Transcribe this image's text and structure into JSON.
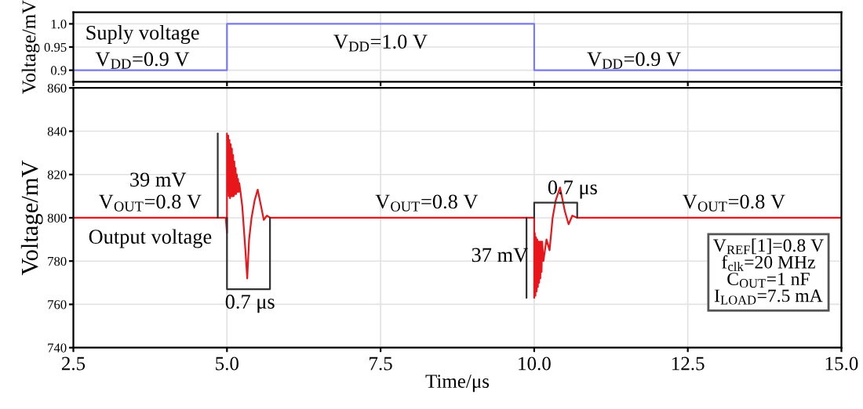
{
  "chart_data": [
    {
      "type": "line",
      "ylabel": "Voltage/mV",
      "xlim": [
        2.5,
        15.0
      ],
      "xticks": [
        {
          "value": 2.5,
          "label": null
        },
        {
          "value": 5,
          "label": null
        },
        {
          "value": 7.5,
          "label": null
        },
        {
          "value": 10,
          "label": null
        },
        {
          "value": 12.5,
          "label": null
        },
        {
          "value": 15,
          "label": null
        }
      ],
      "ylim": [
        0.875,
        1.025
      ],
      "yticks": [
        0.9,
        0.95,
        {
          "value": 1,
          "label": "1.0"
        }
      ],
      "grid": true,
      "tick_labels": "y",
      "series": [
        {
          "color": "#7b7bf0",
          "x": [
            2.5,
            5.0,
            5.0,
            10.0,
            10.0,
            15.0
          ],
          "values": [
            0.9,
            0.9,
            1.0,
            1.0,
            0.9,
            0.9
          ]
        }
      ],
      "annotations": [
        "Suply voltage",
        "V$_{DD}$=0.9 V",
        "V$_{DD}$=1.0 V",
        "V$_{DD}$=0.9 V"
      ]
    },
    {
      "type": "line",
      "xlabel": "Time/μs",
      "ylabel": "Voltage/mV",
      "xlim": [
        2.5,
        15.0
      ],
      "xticks": [
        2.5,
        {
          "value": 5,
          "label": "5.0"
        },
        7.5,
        {
          "value": 10,
          "label": "10.0"
        },
        12.5,
        {
          "value": 15,
          "label": "15.0"
        }
      ],
      "ylim": [
        740,
        860
      ],
      "yticks": [
        740,
        760,
        780,
        800,
        820,
        840,
        860
      ],
      "grid": true,
      "series": [
        {
          "color": "#e8161b",
          "x": [
            2.5,
            4.98,
            5.0,
            5.0,
            5.01,
            5.02,
            5.03,
            5.04,
            5.05,
            5.06,
            5.07,
            5.08,
            5.09,
            5.1,
            5.11,
            5.12,
            5.13,
            5.14,
            5.15,
            5.16,
            5.17,
            5.18,
            5.19,
            5.2,
            5.22,
            5.25,
            5.3,
            5.33,
            5.36,
            5.4,
            5.45,
            5.5,
            5.55,
            5.6,
            5.65,
            5.7,
            9.98,
            10.0,
            10.0,
            10.01,
            10.02,
            10.03,
            10.04,
            10.05,
            10.06,
            10.07,
            10.08,
            10.09,
            10.1,
            10.11,
            10.12,
            10.13,
            10.15,
            10.2,
            10.25,
            10.3,
            10.35,
            10.42,
            10.5,
            10.56,
            10.62,
            10.7,
            15.0
          ],
          "values": [
            800,
            800,
            793,
            839,
            812,
            838,
            810,
            836,
            809,
            834,
            810,
            832,
            810,
            829,
            810,
            826,
            811,
            823,
            811,
            820,
            812,
            818,
            812,
            816,
            812,
            805,
            785,
            772,
            790,
            800,
            808,
            813,
            806,
            799,
            801,
            800,
            800,
            800,
            763,
            793,
            764,
            791,
            766,
            790,
            768,
            789,
            770,
            789,
            772,
            789,
            775,
            789,
            780,
            790,
            785,
            800,
            808,
            814,
            803,
            797,
            801,
            800,
            800
          ]
        },
        {
          "color": "#333333",
          "x": [
            4.85,
            4.85
          ],
          "values": [
            839,
            800
          ]
        },
        {
          "color": "#333333",
          "x": [
            5.0,
            5.0,
            5.7,
            5.7
          ],
          "values": [
            800,
            767,
            767,
            800
          ]
        },
        {
          "color": "#333333",
          "x": [
            9.875,
            9.875
          ],
          "values": [
            800,
            763
          ]
        },
        {
          "color": "#333333",
          "x": [
            10.0,
            10.0,
            10.7,
            10.7
          ],
          "values": [
            800,
            807,
            807,
            800
          ]
        }
      ],
      "annotations": [
        "39 mV",
        "V$_{OUT}$=0.8 V",
        "Output voltage",
        "0.7 μs",
        "V$_{OUT}$=0.8 V",
        "0.7 μs",
        "37 mV",
        "V$_{OUT}$=0.8 V",
        "V$_{REF}$[1]=0.8 V\nf$_{clk}$=20 MHz\nC$_{OUT}$=1 nF\nI$_{LOAD}$=7.5 mA"
      ]
    }
  ]
}
